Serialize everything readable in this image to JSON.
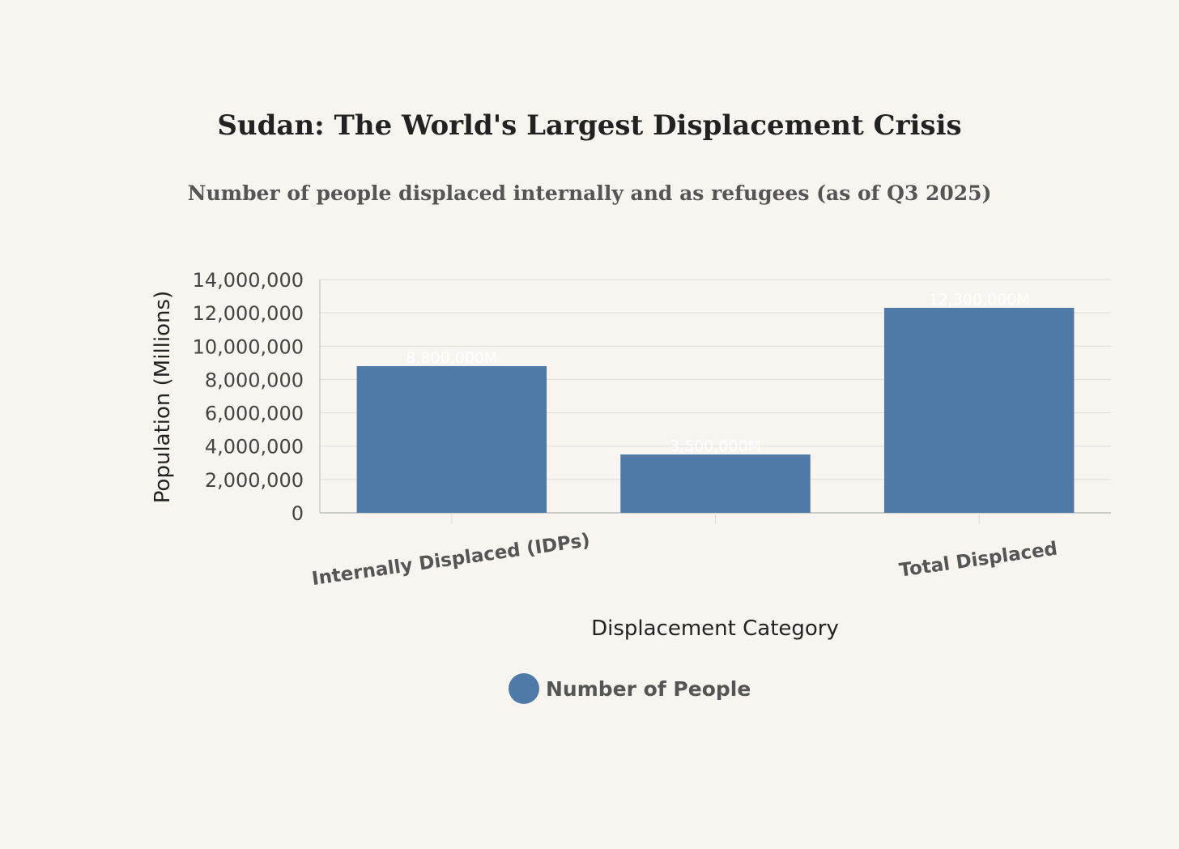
{
  "chart_data": {
    "type": "bar",
    "title": "Sudan: The World's Largest Displacement Crisis",
    "subtitle": "Number of people displaced internally and as refugees (as of Q3 2025)",
    "xlabel": "Displacement Category",
    "ylabel": "Population (Millions)",
    "categories": [
      "Internally Displaced (IDPs)",
      "",
      "Total Displaced"
    ],
    "series": [
      {
        "name": "Number of People",
        "values": [
          8800000,
          3500000,
          12300000
        ],
        "data_labels": [
          "8,800,000M",
          "3,500,000M",
          "12,300,000M"
        ],
        "color": "#4f79a7"
      }
    ],
    "ylim": [
      0,
      14000000
    ],
    "y_ticks": [
      "0",
      "2,000,000",
      "4,000,000",
      "6,000,000",
      "8,000,000",
      "10,000,000",
      "12,000,000",
      "14,000,000"
    ],
    "y_tick_values": [
      0,
      2000000,
      4000000,
      6000000,
      8000000,
      10000000,
      12000000,
      14000000
    ],
    "grid": true,
    "legend": {
      "position": "bottom-center"
    },
    "colors": {
      "background": "#f8f5f0",
      "grid": "#dddddd",
      "axis": "#bbbbbb"
    }
  }
}
